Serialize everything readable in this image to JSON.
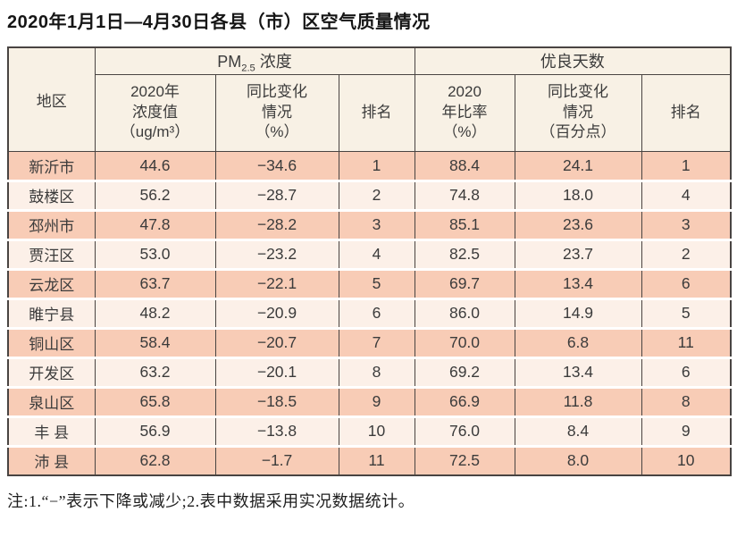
{
  "page": {
    "title": "2020年1月1日—4月30日各县（市）区空气质量情况",
    "footnote": "注:1.“−”表示下降或减少;2.表中数据采用实况数据统计。"
  },
  "table": {
    "corner_label": "地区",
    "pm_group": {
      "prefix": "PM",
      "sub": "2.5",
      "suffix": " 浓度"
    },
    "good_group_label": "优良天数",
    "sub_headers": {
      "pm_value": "2020年\n浓度值\n（ug/m³）",
      "pm_change": "同比变化\n情况\n（%）",
      "pm_rank": "排名",
      "good_ratio": "2020\n年比率\n（%）",
      "good_change": "同比变化\n情况\n（百分点）",
      "good_rank": "排名"
    }
  },
  "colors": {
    "row_odd": "#f8ccb6",
    "row_even": "#fcf0e8",
    "header_bg": "#f8f1e5",
    "grid_line": "#494442"
  },
  "chart_data": {
    "type": "table",
    "title": "2020年1月1日—4月30日各县（市）区空气质量情况",
    "column_groups": [
      "PM2.5浓度",
      "优良天数"
    ],
    "columns": [
      "地区",
      "2020年浓度值（ug/m³）",
      "同比变化情况（%）",
      "排名",
      "2020年比率（%）",
      "同比变化情况（百分点）",
      "排名"
    ],
    "rows": [
      [
        "新沂市",
        "44.6",
        "−34.6",
        "1",
        "88.4",
        "24.1",
        "1"
      ],
      [
        "鼓楼区",
        "56.2",
        "−28.7",
        "2",
        "74.8",
        "18.0",
        "4"
      ],
      [
        "邳州市",
        "47.8",
        "−28.2",
        "3",
        "85.1",
        "23.6",
        "3"
      ],
      [
        "贾汪区",
        "53.0",
        "−23.2",
        "4",
        "82.5",
        "23.7",
        "2"
      ],
      [
        "云龙区",
        "63.7",
        "−22.1",
        "5",
        "69.7",
        "13.4",
        "6"
      ],
      [
        "睢宁县",
        "48.2",
        "−20.9",
        "6",
        "86.0",
        "14.9",
        "5"
      ],
      [
        "铜山区",
        "58.4",
        "−20.7",
        "7",
        "70.0",
        "6.8",
        "11"
      ],
      [
        "开发区",
        "63.2",
        "−20.1",
        "8",
        "69.2",
        "13.4",
        "6"
      ],
      [
        "泉山区",
        "65.8",
        "−18.5",
        "9",
        "66.9",
        "11.8",
        "8"
      ],
      [
        "丰 县",
        "56.9",
        "−13.8",
        "10",
        "76.0",
        "8.4",
        "9"
      ],
      [
        "沛 县",
        "62.8",
        "−1.7",
        "11",
        "72.5",
        "8.0",
        "10"
      ]
    ],
    "note": "注:1.“−”表示下降或减少;2.表中数据采用实况数据统计。"
  }
}
